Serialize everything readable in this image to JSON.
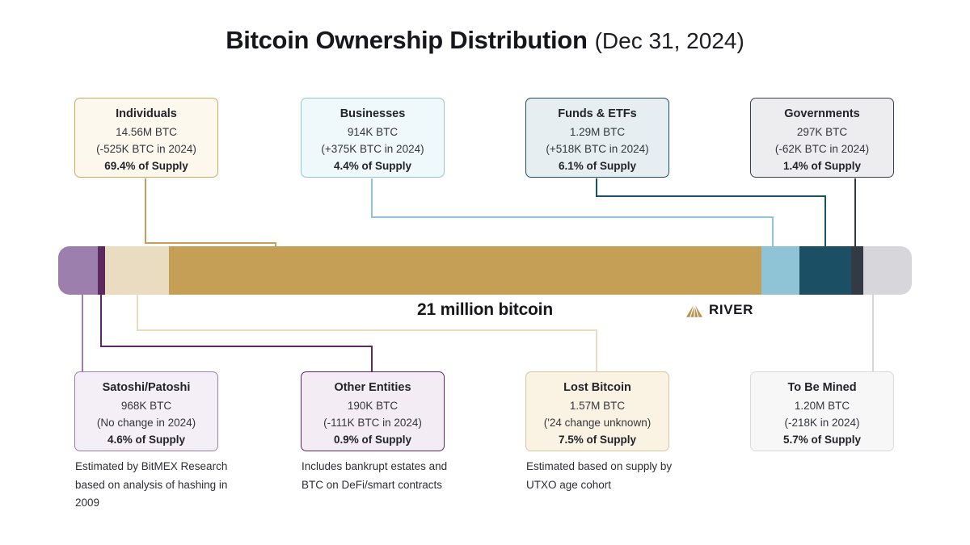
{
  "page": {
    "title": "Bitcoin Ownership Distribution",
    "title_suffix": "(Dec 31, 2024)",
    "total_label": "21 million bitcoin",
    "brand": "RIVER",
    "brand_accent_color": "#b79250"
  },
  "chart_data": {
    "type": "bar",
    "title": "Bitcoin Ownership Distribution (Dec 31, 2024)",
    "total": "21 million bitcoin",
    "unit": "percent of 21 million BTC supply",
    "legend_position": "callout boxes above and below bar",
    "segments": [
      {
        "id": "satoshi",
        "label": "Satoshi/Patoshi",
        "btc": "968K BTC",
        "change": "(No change in 2024)",
        "supply_label": "4.6% of Supply",
        "percent": 4.6,
        "color": "#9d7fae",
        "box_border": "#9d7fae",
        "box_bg": "#f4eef7",
        "footnote": "Estimated by BitMEX Research based on analysis of hashing in 2009"
      },
      {
        "id": "other",
        "label": "Other Entities",
        "btc": "190K BTC",
        "change": "(-111K BTC in 2024)",
        "supply_label": "0.9% of Supply",
        "percent": 0.9,
        "color": "#5c2a5e",
        "box_border": "#5c2a5e",
        "box_bg": "#f3ecf4",
        "footnote": "Includes bankrupt estates and BTC on DeFi/smart contracts"
      },
      {
        "id": "lost",
        "label": "Lost Bitcoin",
        "btc": "1.57M BTC",
        "change": "('24 change unknown)",
        "supply_label": "7.5% of Supply",
        "percent": 7.5,
        "color": "#e9dcc0",
        "box_border": "#d8c69e",
        "box_bg": "#faf3e4",
        "footnote": "Estimated based on supply by UTXO age cohort"
      },
      {
        "id": "individuals",
        "label": "Individuals",
        "btc": "14.56M BTC",
        "change": "(-525K BTC in 2024)",
        "supply_label": "69.4% of Supply",
        "percent": 69.4,
        "color": "#c59f56",
        "box_border": "#cfa95e",
        "box_bg": "#fdf8ee",
        "footnote": ""
      },
      {
        "id": "businesses",
        "label": "Businesses",
        "btc": "914K BTC",
        "change": "(+375K BTC in 2024)",
        "supply_label": "4.4% of Supply",
        "percent": 4.4,
        "color": "#8ec4d6",
        "box_border": "#93c5d6",
        "box_bg": "#eff8fb",
        "footnote": ""
      },
      {
        "id": "funds",
        "label": "Funds & ETFs",
        "btc": "1.29M BTC",
        "change": "(+518K BTC in 2024)",
        "supply_label": "6.1% of Supply",
        "percent": 6.1,
        "color": "#1b4f63",
        "box_border": "#1b4f63",
        "box_bg": "#e7eef2",
        "footnote": ""
      },
      {
        "id": "governments",
        "label": "Governments",
        "btc": "297K BTC",
        "change": "(-62K BTC in 2024)",
        "supply_label": "1.4% of Supply",
        "percent": 1.4,
        "color": "#333a46",
        "box_border": "#39404d",
        "box_bg": "#ededef",
        "footnote": ""
      },
      {
        "id": "mined",
        "label": "To Be Mined",
        "btc": "1.20M BTC",
        "change": "(-218K in 2024)",
        "supply_label": "5.7% of Supply",
        "percent": 5.7,
        "color": "#d7d7db",
        "box_border": "#dadadd",
        "box_bg": "#f7f7f8",
        "footnote": ""
      }
    ]
  }
}
